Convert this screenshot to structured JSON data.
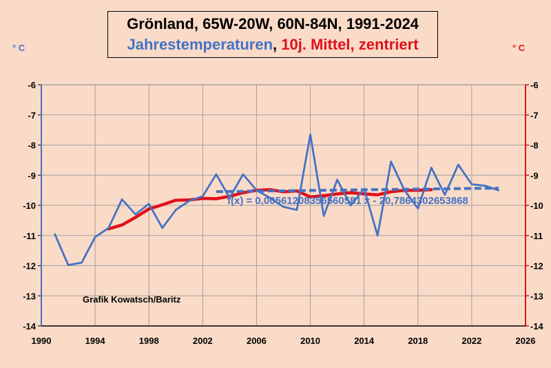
{
  "title": {
    "line1": "Grönland, 65W-20W, 60N-84N, 1991-2024",
    "line2_part1": "Jahrestemperaturen",
    "line2_part2": ", ",
    "line2_part3": "10j. Mittel, zentriert"
  },
  "units": {
    "left": "° C",
    "right": "° C"
  },
  "credit": "Grafik Kowatsch/Baritz",
  "trendline_label": "f(x) = 0,00561208356560581 x - 20,7864302653868",
  "colors": {
    "annual": "#4472c4",
    "mean": "#e0101a",
    "background": "#fadbc8",
    "axis_right": "#e0101a"
  },
  "chart_data": {
    "type": "line",
    "xlim": [
      1990,
      2026
    ],
    "ylim": [
      -14,
      -6
    ],
    "x_ticks": [
      "1990",
      "1994",
      "1998",
      "2002",
      "2006",
      "2010",
      "2014",
      "2018",
      "2022",
      "2026"
    ],
    "y_ticks_left": [
      "-6",
      "-7",
      "-8",
      "-9",
      "-10",
      "-11",
      "-12",
      "-13",
      "-14"
    ],
    "y_ticks_right": [
      "-6",
      "-7",
      "-8",
      "-9",
      "-10",
      "-11",
      "-12",
      "-13",
      "-14"
    ],
    "grid": true,
    "series": [
      {
        "name": "Jahrestemperaturen",
        "x": [
          1991,
          1992,
          1993,
          1994,
          1995,
          1996,
          1997,
          1998,
          1999,
          2000,
          2001,
          2002,
          2003,
          2004,
          2005,
          2006,
          2007,
          2008,
          2009,
          2010,
          2011,
          2012,
          2013,
          2014,
          2015,
          2016,
          2017,
          2018,
          2019,
          2020,
          2021,
          2022,
          2023,
          2024
        ],
        "y": [
          -10.95,
          -11.98,
          -11.9,
          -11.05,
          -10.75,
          -9.8,
          -10.3,
          -9.95,
          -10.75,
          -10.15,
          -9.85,
          -9.7,
          -8.97,
          -9.75,
          -8.97,
          -9.5,
          -9.75,
          -10.05,
          -10.15,
          -7.65,
          -10.35,
          -9.15,
          -10.0,
          -9.45,
          -11.0,
          -8.55,
          -9.5,
          -10.1,
          -8.75,
          -9.65,
          -8.65,
          -9.3,
          -9.35,
          -9.5
        ]
      },
      {
        "name": "10j. Mittel, zentriert",
        "x": [
          1995,
          1996,
          1997,
          1998,
          1999,
          2000,
          2001,
          2002,
          2003,
          2004,
          2005,
          2006,
          2007,
          2008,
          2009,
          2010,
          2011,
          2012,
          2013,
          2014,
          2015,
          2016,
          2017,
          2018,
          2019
        ],
        "y": [
          -10.78,
          -10.65,
          -10.4,
          -10.12,
          -9.98,
          -9.83,
          -9.82,
          -9.77,
          -9.78,
          -9.7,
          -9.58,
          -9.5,
          -9.48,
          -9.55,
          -9.52,
          -9.72,
          -9.68,
          -9.62,
          -9.58,
          -9.62,
          -9.65,
          -9.55,
          -9.5,
          -9.5,
          -9.48
        ]
      }
    ],
    "trendline": {
      "x": [
        2003,
        2024
      ],
      "slope": 0.00561208356560581,
      "intercept": -20.7864302653868,
      "style": "dashed"
    }
  }
}
